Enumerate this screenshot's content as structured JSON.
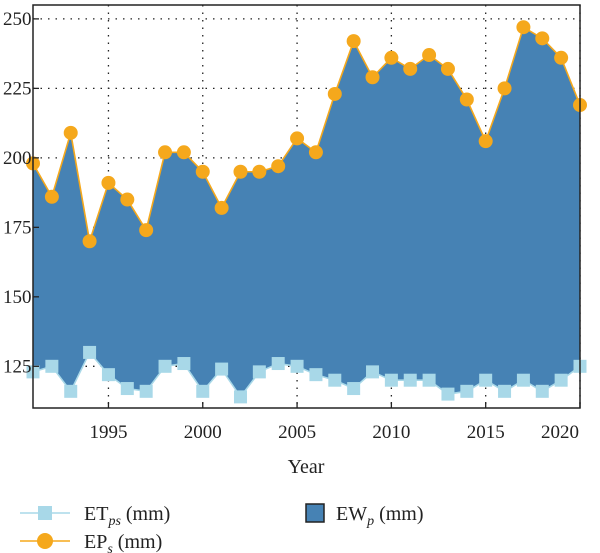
{
  "chart_data": {
    "type": "area",
    "title": "",
    "xlabel": "Year",
    "ylabel": "",
    "xlim": [
      1991,
      2020
    ],
    "ylim": [
      110,
      255
    ],
    "xticks": [
      1995,
      2000,
      2005,
      2010,
      2015,
      2020
    ],
    "yticks": [
      125,
      150,
      175,
      200,
      225,
      250
    ],
    "grid": "dotted",
    "legend_position": "bottom",
    "x": [
      1991,
      1992,
      1993,
      1994,
      1995,
      1996,
      1997,
      1998,
      1999,
      2000,
      2001,
      2002,
      2003,
      2004,
      2005,
      2006,
      2007,
      2008,
      2009,
      2010,
      2011,
      2012,
      2013,
      2014,
      2015,
      2016,
      2017,
      2018,
      2019,
      2020
    ],
    "series": [
      {
        "name": "EP",
        "name_sub": "s",
        "unit": " (mm)",
        "marker": "circle",
        "color": "#F5A81C",
        "values": [
          198,
          186,
          209,
          170,
          191,
          185,
          174,
          202,
          202,
          195,
          182,
          195,
          195,
          197,
          207,
          202,
          223,
          242,
          229,
          236,
          232,
          237,
          232,
          221,
          206,
          225,
          247,
          243,
          236,
          219
        ]
      },
      {
        "name": "ET",
        "name_sub": "ps",
        "unit": " (mm)",
        "marker": "square",
        "color": "#A8D8E8",
        "values": [
          123,
          125,
          116,
          130,
          122,
          117,
          116,
          125,
          126,
          116,
          124,
          114,
          123,
          126,
          125,
          122,
          120,
          117,
          123,
          120,
          120,
          120,
          115,
          116,
          120,
          116,
          120,
          116,
          120,
          125
        ]
      },
      {
        "name": "EW",
        "name_sub": "p",
        "unit": " (mm)",
        "marker": "filled-area",
        "color": "#4682B4"
      }
    ]
  }
}
